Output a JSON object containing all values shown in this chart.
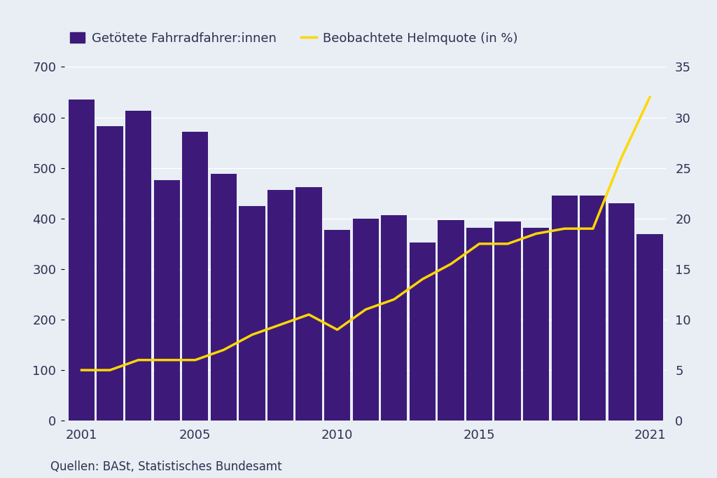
{
  "years": [
    2001,
    2002,
    2003,
    2004,
    2005,
    2006,
    2007,
    2008,
    2009,
    2010,
    2011,
    2012,
    2013,
    2014,
    2015,
    2016,
    2017,
    2018,
    2019,
    2020,
    2021
  ],
  "deaths": [
    635,
    583,
    613,
    476,
    572,
    488,
    425,
    457,
    462,
    378,
    399,
    406,
    352,
    397,
    382,
    394,
    381,
    445,
    445,
    430,
    369
  ],
  "helmet_rate": [
    5.0,
    5.0,
    6.0,
    6.0,
    6.0,
    7.0,
    8.5,
    9.5,
    10.5,
    9.0,
    11.0,
    12.0,
    14.0,
    15.5,
    17.5,
    17.5,
    18.5,
    19.0,
    19.0,
    26.0,
    32.0
  ],
  "bar_color": "#3d1a7a",
  "line_color": "#FFD700",
  "bg_color": "#e8eef4",
  "legend_label_bar": "Getötete Fahrradfahrer:innen",
  "legend_label_line": "Beobachtete Helmquote (in %)",
  "source_text": "Quellen: BASt, Statistisches Bundesamt",
  "ylim_left": [
    0,
    700
  ],
  "ylim_right": [
    0,
    35
  ],
  "yticks_left": [
    0,
    100,
    200,
    300,
    400,
    500,
    600,
    700
  ],
  "yticks_right": [
    0,
    5,
    10,
    15,
    20,
    25,
    30,
    35
  ],
  "xtick_years": [
    2001,
    2005,
    2010,
    2015,
    2021
  ]
}
